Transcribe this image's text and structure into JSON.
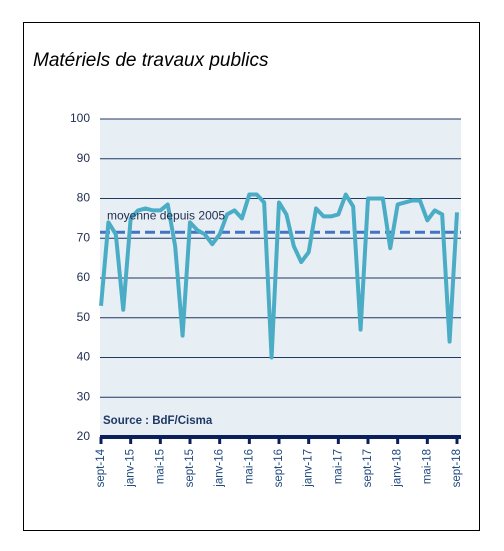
{
  "chart_data": {
    "type": "line",
    "title": "Matériels de travaux publics",
    "categories": [
      "sept-14",
      null,
      null,
      null,
      "janv-15",
      null,
      null,
      null,
      "mai-15",
      null,
      null,
      null,
      "sept-15",
      null,
      null,
      null,
      "janv-16",
      null,
      null,
      null,
      "mai-16",
      null,
      null,
      null,
      "sept-16",
      null,
      null,
      null,
      "janv-17",
      null,
      null,
      null,
      "mai-17",
      null,
      null,
      null,
      "sept-17",
      null,
      null,
      null,
      "janv-18",
      null,
      null,
      null,
      "mai-18",
      null,
      null,
      null,
      "sept-18"
    ],
    "values": [
      53,
      74,
      71,
      52,
      75,
      77,
      77.5,
      77,
      77,
      78.5,
      68,
      45.5,
      74,
      72,
      71,
      68.5,
      71,
      76,
      77,
      75,
      81,
      81,
      79,
      40,
      79,
      76,
      68,
      64,
      66.5,
      77.5,
      75.5,
      75.5,
      76,
      81,
      78,
      47,
      80,
      80,
      80,
      67.5,
      78.5,
      79,
      79.5,
      79.5,
      74.5,
      77,
      76,
      44,
      76.5
    ],
    "color": "#4bacc6",
    "ylim": [
      20,
      100
    ],
    "yticks": [
      20,
      30,
      40,
      50,
      60,
      70,
      80,
      90,
      100
    ],
    "grid": true,
    "reference_line": {
      "value": 71.5,
      "label": "moyenne depuis 2005",
      "color": "#4472c4"
    },
    "source": "Source : BdF/Cisma"
  }
}
